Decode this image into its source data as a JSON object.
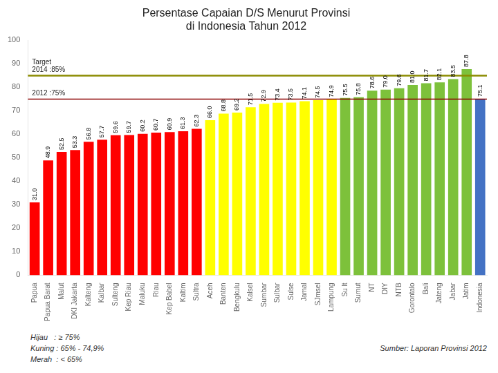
{
  "chart_data": {
    "type": "bar",
    "title": "Persentase Capaian D/S Menurut Provinsi\ndi Indonesia Tahun 2012",
    "categories": [
      "Papua",
      "Papua Barat",
      "Malut",
      "DKI Jakarta",
      "Kalteng",
      "Kalbar",
      "Sulteng",
      "Kep Riau",
      "Maluku",
      "Riau",
      "Kep Babel",
      "Kaltim",
      "Sultra",
      "Aceh",
      "Banten",
      "Bengkulu",
      "Kalsel",
      "Sumbar",
      "Sulbar",
      "Sulse",
      "Jamal",
      "SJmsel",
      "Lampung",
      "Su lt",
      "Sumut",
      "NT",
      "DIY",
      "NTB",
      "Gorontalo",
      "Bali",
      "Jateng",
      "Jabar",
      "Jatim",
      "Indonesia"
    ],
    "values": [
      31.0,
      48.9,
      52.5,
      53.3,
      56.8,
      57.7,
      59.6,
      59.7,
      60.2,
      60.7,
      60.9,
      61.3,
      62.3,
      66.0,
      68.8,
      69.2,
      71.5,
      72.9,
      73.4,
      73.5,
      74.1,
      74.5,
      74.9,
      75.5,
      75.8,
      78.6,
      79.0,
      79.6,
      81.0,
      81.7,
      82.1,
      83.5,
      87.8,
      75.1
    ],
    "value_labels": [
      "31.0",
      "48.9",
      "52.5",
      "53.3",
      "56.8",
      "57.7",
      "59.6",
      "59.7",
      "60.2",
      "60.7",
      "60.9",
      "61.3",
      "62.3",
      "66.0",
      "68.8",
      "69.2",
      "71.5",
      "72.9",
      "73.4",
      "73.5",
      "74.1",
      "74.5",
      "74.9",
      "75.5",
      "75.8",
      "78.6",
      "79.0",
      "79.6",
      "81.0",
      "81.7",
      "82.1",
      "83.5",
      "87.8",
      "75.1"
    ],
    "colors": [
      "#FF0000",
      "#FF0000",
      "#FF0000",
      "#FF0000",
      "#FF0000",
      "#FF0000",
      "#FF0000",
      "#FF0000",
      "#FF0000",
      "#FF0000",
      "#FF0000",
      "#FF0000",
      "#FF0000",
      "#FFFF00",
      "#FFFF00",
      "#FFFF00",
      "#FFFF00",
      "#FFFF00",
      "#FFFF00",
      "#FFFF00",
      "#FFFF00",
      "#FFFF00",
      "#FFFF00",
      "#7DC13B",
      "#7DC13B",
      "#7DC13B",
      "#7DC13B",
      "#7DC13B",
      "#7DC13B",
      "#7DC13B",
      "#7DC13B",
      "#7DC13B",
      "#7DC13B",
      "#4472C4"
    ],
    "data_labels": true,
    "reference_lines": [
      {
        "value": 85,
        "color": "#8B8B00",
        "label": "Target\n2014 :85%"
      },
      {
        "value": 75,
        "color": "#8B0000",
        "label": "2012 :75%"
      }
    ],
    "annotations": [
      "Hijau   : ≥ 75%",
      "Kuning : 65% - 74,9%",
      "Merah  : < 65%"
    ],
    "source": "Sumber: Laporan Provinsi 2012",
    "ylim": [
      0,
      100
    ],
    "yticks": [
      0,
      10,
      20,
      30,
      40,
      50,
      60,
      70,
      80,
      90,
      100
    ],
    "grid": false
  }
}
